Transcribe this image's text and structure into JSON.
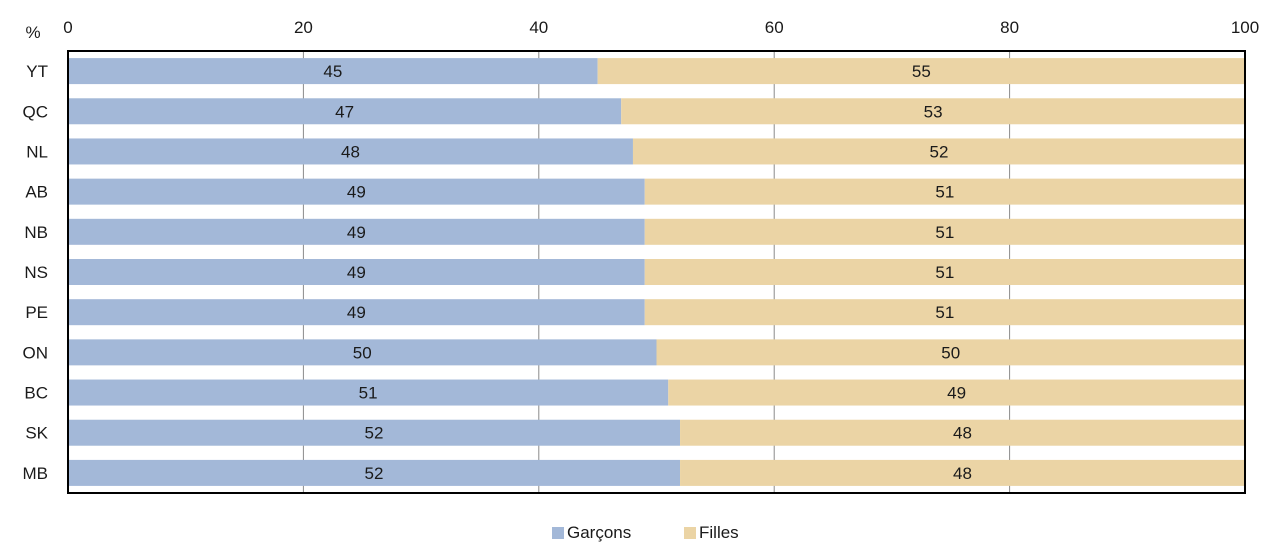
{
  "chart_data": {
    "type": "bar",
    "orientation": "horizontal",
    "stacked": true,
    "unit_label": "%",
    "categories": [
      "YT",
      "QC",
      "NL",
      "AB",
      "NB",
      "NS",
      "PE",
      "ON",
      "BC",
      "SK",
      "MB"
    ],
    "series": [
      {
        "name": "Garçons",
        "color": "#a3b8d8",
        "values": [
          45,
          47,
          48,
          49,
          49,
          49,
          49,
          50,
          51,
          52,
          52
        ]
      },
      {
        "name": "Filles",
        "color": "#ebd4a5",
        "values": [
          55,
          53,
          52,
          51,
          51,
          51,
          51,
          50,
          49,
          48,
          48
        ]
      }
    ],
    "xlim": [
      0,
      100
    ],
    "xticks": [
      0,
      20,
      40,
      60,
      80,
      100
    ],
    "grid": true,
    "legend_position": "bottom-center",
    "data_labels": true
  }
}
